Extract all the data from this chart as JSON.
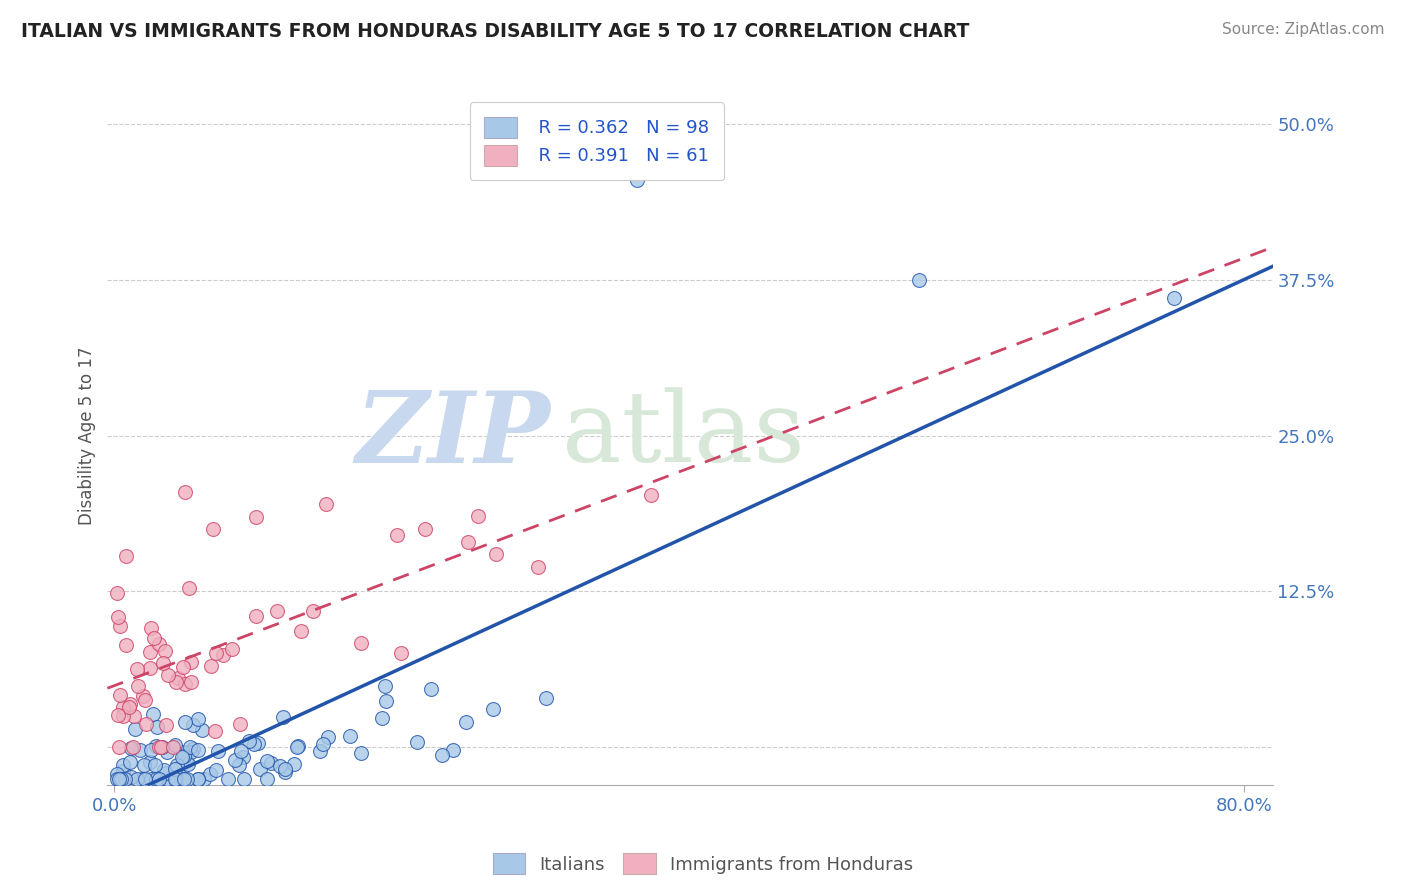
{
  "title": "ITALIAN VS IMMIGRANTS FROM HONDURAS DISABILITY AGE 5 TO 17 CORRELATION CHART",
  "source": "Source: ZipAtlas.com",
  "ylabel": "Disability Age 5 to 17",
  "xlim": [
    -0.005,
    0.82
  ],
  "ylim": [
    -0.03,
    0.53
  ],
  "x_ticks": [
    0.0,
    0.8
  ],
  "x_tick_labels": [
    "0.0%",
    "80.0%"
  ],
  "y_ticks": [
    0.0,
    0.125,
    0.25,
    0.375,
    0.5
  ],
  "y_tick_labels": [
    "",
    "12.5%",
    "25.0%",
    "37.5%",
    "50.0%"
  ],
  "legend_r1": "R = 0.362",
  "legend_n1": "N = 98",
  "legend_r2": "R = 0.391",
  "legend_n2": "N = 61",
  "color_italian": "#a8c8e8",
  "color_honduras": "#f0b0c0",
  "color_line_italian": "#2255aa",
  "color_line_honduras": "#cc4466",
  "color_legend_text": "#2255cc",
  "background_color": "#ffffff",
  "grid_color": "#cccccc",
  "watermark_zip": "ZIP",
  "watermark_atlas": "atlas",
  "watermark_color_zip": "#c8d8ee",
  "watermark_color_atlas": "#d8e8d8"
}
